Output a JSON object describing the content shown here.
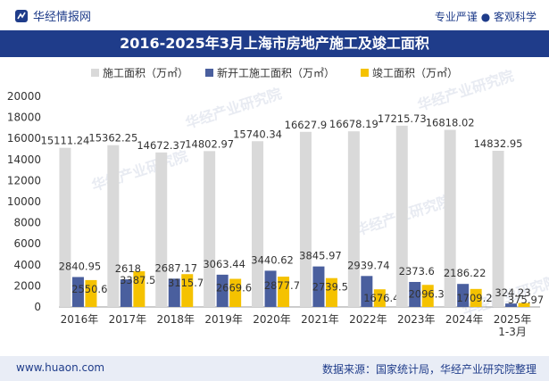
{
  "header": {
    "brand": "华经情报网",
    "slogan": "专业严谨 ● 客观科学"
  },
  "footer": {
    "website": "www.huaon.com",
    "source": "数据来源：国家统计局，华经产业研究院整理"
  },
  "watermark": "华经产业研究院",
  "colors": {
    "header_band": "#1f3c8a",
    "series": [
      "#d9d9d9",
      "#4a5f9e",
      "#f5c200"
    ]
  },
  "chart_data": {
    "type": "bar",
    "title": "2016-2025年3月上海市房地产施工及竣工面积",
    "categories": [
      "2016年",
      "2017年",
      "2018年",
      "2019年",
      "2020年",
      "2021年",
      "2022年",
      "2023年",
      "2024年",
      "2025年 1-3月"
    ],
    "series": [
      {
        "name": "施工面积（万㎡）",
        "values": [
          15111.24,
          15362.25,
          14672.37,
          14802.97,
          15740.34,
          16627.9,
          16678.19,
          17215.73,
          16818.02,
          14832.95
        ],
        "labels": [
          "15111.24",
          "15362.25",
          "14672.37",
          "14802.97",
          "15740.34",
          "16627.9",
          "16678.19",
          "17215.73",
          "16818.02",
          "14832.95"
        ]
      },
      {
        "name": "新开工施工面积（万㎡）",
        "values": [
          2840.95,
          2618,
          2687.17,
          3063.44,
          3440.62,
          3845.97,
          2939.74,
          2373.6,
          2186.22,
          324.23
        ],
        "labels": [
          "2840.95",
          "2618",
          "2687.17",
          "3063.44",
          "3440.62",
          "3845.97",
          "2939.74",
          "2373.6",
          "2186.22",
          "324.23"
        ]
      },
      {
        "name": "竣工面积（万㎡）",
        "values": [
          2550.64,
          3387.56,
          3115.76,
          2669.67,
          2877.78,
          2739.55,
          1676.4,
          2096.36,
          1709.22,
          375.97
        ],
        "labels": [
          "2550.64",
          "3387.56",
          "3115.76",
          "2669.67",
          "2877.78",
          "2739.55",
          "1676.4",
          "2096.36",
          "1709.22",
          "375.97"
        ]
      }
    ],
    "yticks": [
      "0",
      "2000",
      "4000",
      "6000",
      "8000",
      "10000",
      "12000",
      "14000",
      "16000",
      "18000",
      "20000"
    ],
    "ylim": [
      0,
      20000
    ],
    "grid": false,
    "legend": "top"
  }
}
